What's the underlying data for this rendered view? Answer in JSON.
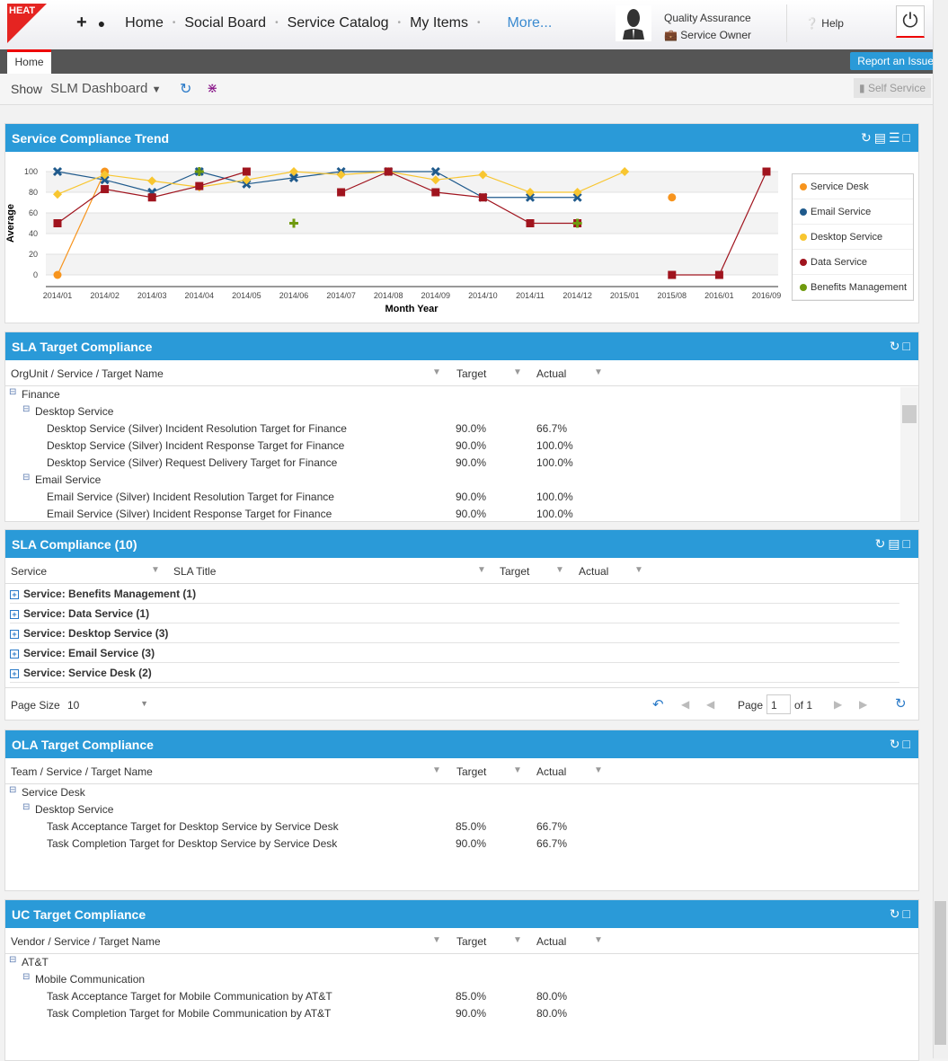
{
  "header": {
    "logo": "HEAT",
    "nav": [
      "Home",
      "Social Board",
      "Service Catalog",
      "My Items"
    ],
    "more": "More...",
    "role": "Quality Assurance",
    "subrole": "Service Owner",
    "help": "Help"
  },
  "tabs": {
    "home": "Home",
    "report": "Report an Issue"
  },
  "toolbar": {
    "show": "Show",
    "dashboard": "SLM Dashboard",
    "self_service": "Self Service"
  },
  "trend": {
    "title": "Service Compliance Trend"
  },
  "chart_data": {
    "type": "line",
    "title": "Service Compliance Trend",
    "xlabel": "Month Year",
    "ylabel": "Average",
    "ylim": [
      0,
      100
    ],
    "yticks": [
      0,
      20,
      40,
      60,
      80,
      100
    ],
    "categories": [
      "2014/01",
      "2014/02",
      "2014/03",
      "2014/04",
      "2014/05",
      "2014/06",
      "2014/07",
      "2014/08",
      "2014/09",
      "2014/10",
      "2014/11",
      "2014/12",
      "2015/01",
      "2015/08",
      "2016/01",
      "2016/09"
    ],
    "legend_position": "right",
    "series": [
      {
        "name": "Service Desk",
        "color": "#f7941d",
        "marker": "circle",
        "values": [
          0,
          100,
          null,
          null,
          null,
          null,
          null,
          null,
          null,
          null,
          null,
          null,
          null,
          75,
          null,
          100
        ]
      },
      {
        "name": "Email Service",
        "color": "#1f5a8c",
        "marker": "x",
        "values": [
          100,
          92,
          80,
          100,
          88,
          94,
          100,
          100,
          100,
          75,
          75,
          75,
          null,
          null,
          null,
          null
        ]
      },
      {
        "name": "Desktop Service",
        "color": "#f8c630",
        "marker": "diamond",
        "values": [
          78,
          97,
          91,
          85,
          92,
          100,
          97,
          100,
          92,
          97,
          80,
          80,
          100,
          null,
          null,
          null
        ]
      },
      {
        "name": "Data Service",
        "color": "#a0141e",
        "marker": "square",
        "values": [
          50,
          83,
          75,
          86,
          100,
          null,
          80,
          100,
          80,
          75,
          50,
          50,
          null,
          0,
          0,
          100
        ]
      },
      {
        "name": "Benefits Management",
        "color": "#6f9a0e",
        "marker": "plus",
        "values": [
          null,
          null,
          null,
          100,
          null,
          50,
          null,
          null,
          null,
          null,
          null,
          50,
          null,
          null,
          null,
          null
        ]
      }
    ]
  },
  "sla_target": {
    "title": "SLA Target Compliance",
    "cols": [
      "OrgUnit / Service / Target Name",
      "Target",
      "Actual"
    ],
    "rows": [
      {
        "l": 0,
        "name": "Finance"
      },
      {
        "l": 1,
        "name": "Desktop Service"
      },
      {
        "l": 2,
        "name": "Desktop Service (Silver) Incident Resolution Target for Finance",
        "target": "90.0%",
        "actual": "66.7%"
      },
      {
        "l": 2,
        "name": "Desktop Service (Silver) Incident Response Target for Finance",
        "target": "90.0%",
        "actual": "100.0%"
      },
      {
        "l": 2,
        "name": "Desktop Service (Silver) Request Delivery Target for Finance",
        "target": "90.0%",
        "actual": "100.0%"
      },
      {
        "l": 1,
        "name": "Email Service"
      },
      {
        "l": 2,
        "name": "Email Service (Silver) Incident Resolution Target for Finance",
        "target": "90.0%",
        "actual": "100.0%"
      },
      {
        "l": 2,
        "name": "Email Service (Silver) Incident Response Target for Finance",
        "target": "90.0%",
        "actual": "100.0%"
      }
    ]
  },
  "sla_compliance": {
    "title": "SLA Compliance (10)",
    "cols": [
      "Service",
      "SLA Title",
      "Target",
      "Actual"
    ],
    "groups": [
      "Service: Benefits Management (1)",
      "Service: Data Service (1)",
      "Service: Desktop Service (3)",
      "Service: Email Service (3)",
      "Service: Service Desk (2)"
    ],
    "page_size_label": "Page Size",
    "page_size": "10",
    "page_label": "Page",
    "page": "1",
    "of": "of 1"
  },
  "ola": {
    "title": "OLA Target Compliance",
    "cols": [
      "Team / Service / Target Name",
      "Target",
      "Actual"
    ],
    "rows": [
      {
        "l": 0,
        "name": "Service Desk"
      },
      {
        "l": 1,
        "name": "Desktop Service"
      },
      {
        "l": 2,
        "name": "Task Acceptance Target for Desktop Service by Service Desk",
        "target": "85.0%",
        "actual": "66.7%"
      },
      {
        "l": 2,
        "name": "Task Completion Target for Desktop Service by Service Desk",
        "target": "90.0%",
        "actual": "66.7%"
      }
    ]
  },
  "uc": {
    "title": "UC Target Compliance",
    "cols": [
      "Vendor / Service / Target Name",
      "Target",
      "Actual"
    ],
    "rows": [
      {
        "l": 0,
        "name": "AT&T"
      },
      {
        "l": 1,
        "name": "Mobile Communication"
      },
      {
        "l": 2,
        "name": "Task Acceptance Target for Mobile Communication by AT&T",
        "target": "85.0%",
        "actual": "80.0%"
      },
      {
        "l": 2,
        "name": "Task Completion Target for Mobile Communication by AT&T",
        "target": "90.0%",
        "actual": "80.0%"
      }
    ]
  }
}
